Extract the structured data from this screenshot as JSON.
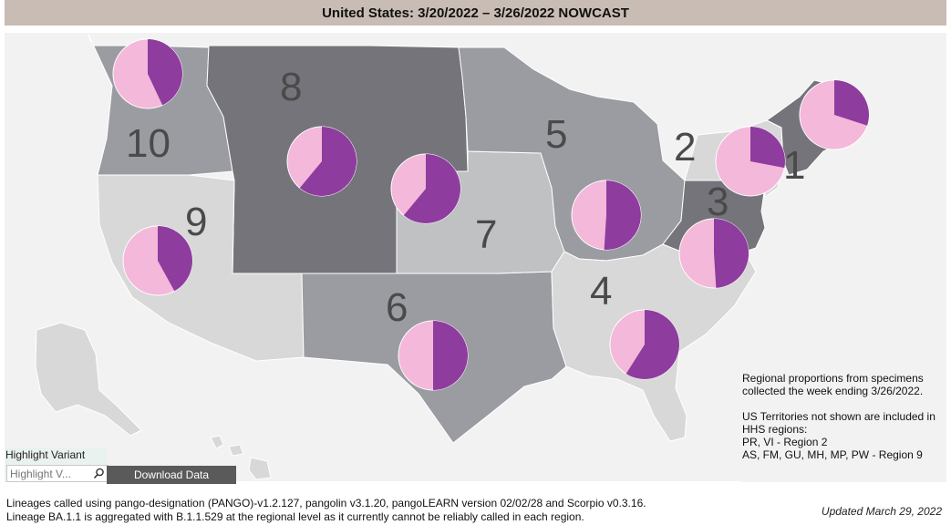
{
  "title": "United States: 3/20/2022 – 3/26/2022 NOWCAST",
  "colors": {
    "pie_pink": "#f3b8da",
    "pie_purple": "#8e3c9e",
    "region_dark": "#74747a",
    "region_mid": "#9a9ca2",
    "region_light": "#bfc1c3",
    "region_pale": "#d8d8d8"
  },
  "regions": [
    {
      "label": "1",
      "purple_share": 0.3
    },
    {
      "label": "2",
      "purple_share": 0.28
    },
    {
      "label": "3",
      "purple_share": 0.49
    },
    {
      "label": "4",
      "purple_share": 0.59
    },
    {
      "label": "5",
      "purple_share": 0.51
    },
    {
      "label": "6",
      "purple_share": 0.5
    },
    {
      "label": "7",
      "purple_share": 0.61
    },
    {
      "label": "8",
      "purple_share": 0.61
    },
    {
      "label": "9",
      "purple_share": 0.42
    },
    {
      "label": "10",
      "purple_share": 0.43
    }
  ],
  "notes": {
    "line1": "Regional proportions from specimens",
    "line2": "collected the week ending 3/26/2022.",
    "line3": "US Territories not shown are included in",
    "line4": "HHS regions:",
    "line5": "PR, VI - Region 2",
    "line6": "AS, FM, GU, MH, MP, PW - Region 9"
  },
  "highlight": {
    "label": "Highlight Variant",
    "placeholder": "Highlight V..."
  },
  "download_label": "Download Data",
  "footnote": {
    "line1": "Lineages called using pango-designation (PANGO)-v1.2.127, pangolin v3.1.20, pangoLEARN version 02/02/28 and Scorpio v0.3.16.",
    "line2": "Lineage BA.1.1 is aggregated with B.1.1.529 at the regional level as it currently cannot be reliably called in each region."
  },
  "updated": "Updated March 29, 2022",
  "icons": {
    "search": "search-icon"
  }
}
